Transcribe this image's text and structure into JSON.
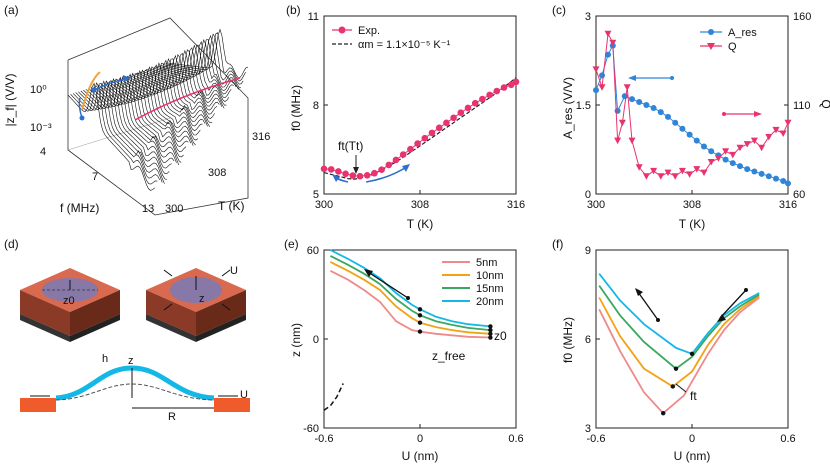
{
  "panel_labels": {
    "a": "(a)",
    "b": "(b)",
    "c": "(c)",
    "d": "(d)",
    "e": "(e)",
    "f": "(f)"
  },
  "colors": {
    "pink": "#e8336e",
    "blue": "#2f86d9",
    "orange": "#ef5b2a",
    "cyan": "#14b8e6",
    "mauve": "#8878a8"
  },
  "panel_a": {
    "ylabel": "|z_f| (V/V)",
    "yticks": [
      "10⁰",
      "10⁻³"
    ],
    "xlabel": "f (MHz)",
    "xticks": [
      "4",
      "7",
      "13"
    ],
    "tlabel": "T (K)",
    "tticks": [
      "300",
      "308",
      "316"
    ]
  },
  "chart_data": [
    {
      "id": "b",
      "type": "line",
      "title": "",
      "xlabel": "T (K)",
      "ylabel": "f0 (MHz)",
      "xlim": [
        300,
        316
      ],
      "ylim": [
        5,
        11
      ],
      "xticks": [
        300,
        308,
        316
      ],
      "yticks": [
        5,
        8,
        11
      ],
      "legend": [
        "Exp.",
        "αm = 1.1×10⁻⁵ K⁻¹"
      ],
      "annotation": "ft(Tt)",
      "series": [
        {
          "name": "Exp.",
          "x": [
            300,
            300.6,
            301.2,
            301.8,
            302.4,
            303,
            303.6,
            304.2,
            304.8,
            305.4,
            306,
            306.6,
            307.2,
            307.8,
            308.4,
            309,
            309.6,
            310.2,
            310.8,
            311.4,
            312,
            312.6,
            313.2,
            313.8,
            314.4,
            315,
            315.6,
            316
          ],
          "y": [
            5.85,
            5.83,
            5.76,
            5.68,
            5.62,
            5.6,
            5.63,
            5.7,
            5.82,
            5.98,
            6.15,
            6.33,
            6.51,
            6.7,
            6.88,
            7.06,
            7.23,
            7.4,
            7.57,
            7.74,
            7.9,
            8.06,
            8.2,
            8.34,
            8.47,
            8.59,
            8.68,
            8.78
          ]
        },
        {
          "name": "fit",
          "x": [
            300,
            302,
            302.5,
            303,
            304,
            305,
            306,
            307,
            308,
            309,
            310,
            311,
            312,
            313,
            314,
            315,
            316
          ],
          "y": [
            5.72,
            5.52,
            5.5,
            5.53,
            5.65,
            5.85,
            6.08,
            6.35,
            6.62,
            6.9,
            7.18,
            7.46,
            7.74,
            8.02,
            8.3,
            8.6,
            8.92
          ]
        }
      ]
    },
    {
      "id": "c",
      "type": "line",
      "xlabel": "T (K)",
      "ylabel": "A_res (V/V)",
      "y2label": "Q",
      "xlim": [
        300,
        316
      ],
      "ylim": [
        0,
        3
      ],
      "y2lim": [
        60,
        160
      ],
      "xticks": [
        300,
        308,
        316
      ],
      "yticks": [
        0,
        1.5,
        3
      ],
      "y2ticks": [
        60,
        110,
        160
      ],
      "legend": [
        "A_res",
        "Q"
      ],
      "series": [
        {
          "name": "A_res",
          "axis": "left",
          "x": [
            300,
            300.5,
            301,
            301.4,
            301.8,
            302.4,
            303,
            303.6,
            304.2,
            304.8,
            305.4,
            306,
            306.6,
            307.2,
            307.8,
            308.4,
            309,
            309.6,
            310.2,
            310.8,
            311.4,
            312,
            312.6,
            313.2,
            313.8,
            314.4,
            315,
            315.6,
            316
          ],
          "y": [
            1.75,
            2.0,
            2.35,
            2.5,
            1.4,
            1.65,
            1.6,
            1.55,
            1.5,
            1.45,
            1.38,
            1.3,
            1.2,
            1.1,
            1.0,
            0.9,
            0.8,
            0.72,
            0.65,
            0.58,
            0.52,
            0.47,
            0.42,
            0.38,
            0.34,
            0.3,
            0.26,
            0.22,
            0.18
          ]
        },
        {
          "name": "Q",
          "axis": "right",
          "x": [
            300,
            300.5,
            301,
            301.4,
            301.8,
            302.2,
            302.6,
            303,
            303.6,
            304.2,
            304.8,
            305.4,
            306,
            306.6,
            307.2,
            307.8,
            308.4,
            309,
            309.6,
            310.2,
            310.8,
            311.4,
            312,
            312.6,
            313.2,
            313.8,
            314.4,
            315,
            315.6,
            316
          ],
          "y": [
            130,
            120,
            150,
            145,
            90,
            100,
            120,
            90,
            75,
            70,
            73,
            70,
            72,
            70,
            73,
            71,
            74,
            72,
            78,
            80,
            84,
            82,
            86,
            88,
            90,
            86,
            92,
            96,
            94,
            100
          ]
        }
      ]
    },
    {
      "id": "e",
      "type": "line",
      "xlabel": "U (nm)",
      "ylabel": "z (nm)",
      "xlim": [
        -0.6,
        0.6
      ],
      "ylim": [
        -60,
        60
      ],
      "xticks": [
        -0.6,
        0,
        0.6
      ],
      "yticks": [
        -60,
        0,
        60
      ],
      "legend": [
        "5nm",
        "10nm",
        "15nm",
        "20nm"
      ],
      "annotations": [
        "z0",
        "z_free"
      ],
      "series": [
        {
          "name": "5nm",
          "x": [
            -0.56,
            -0.45,
            -0.35,
            -0.25,
            -0.15,
            -0.05,
            0,
            0.1,
            0.2,
            0.3,
            0.44
          ],
          "y": [
            46,
            40,
            33,
            25,
            12,
            6,
            5,
            3.5,
            2.5,
            1.5,
            1
          ]
        },
        {
          "name": "10nm",
          "x": [
            -0.56,
            -0.45,
            -0.35,
            -0.25,
            -0.15,
            -0.05,
            0,
            0.1,
            0.2,
            0.3,
            0.44
          ],
          "y": [
            52,
            46,
            40,
            33,
            22,
            14,
            11,
            8,
            6,
            4.5,
            3.5
          ]
        },
        {
          "name": "15nm",
          "x": [
            -0.56,
            -0.45,
            -0.35,
            -0.25,
            -0.15,
            -0.05,
            0,
            0.1,
            0.2,
            0.3,
            0.44
          ],
          "y": [
            56,
            50,
            44,
            37,
            27,
            19,
            16,
            12,
            9.5,
            7.5,
            6
          ]
        },
        {
          "name": "20nm",
          "x": [
            -0.56,
            -0.45,
            -0.35,
            -0.25,
            -0.15,
            -0.05,
            0,
            0.1,
            0.2,
            0.3,
            0.44
          ],
          "y": [
            60,
            54,
            48,
            41,
            31,
            23,
            20,
            15,
            12,
            10,
            8.5
          ]
        },
        {
          "name": "z_free",
          "x": [
            -0.6,
            -0.56,
            -0.52,
            -0.48
          ],
          "y": [
            -48,
            -45,
            -39,
            -30
          ]
        }
      ]
    },
    {
      "id": "f",
      "type": "line",
      "xlabel": "U (nm)",
      "ylabel": "f0 (MHz)",
      "xlim": [
        -0.6,
        0.6
      ],
      "ylim": [
        3,
        9
      ],
      "xticks": [
        -0.6,
        0,
        0.6
      ],
      "yticks": [
        3,
        6,
        9
      ],
      "annotation": "ft",
      "series": [
        {
          "name": "5nm",
          "x": [
            -0.58,
            -0.45,
            -0.3,
            -0.18,
            -0.05,
            0.1,
            0.2,
            0.3,
            0.42
          ],
          "y": [
            7.0,
            5.6,
            4.2,
            3.5,
            4.1,
            5.5,
            6.3,
            6.9,
            7.4
          ]
        },
        {
          "name": "10nm",
          "x": [
            -0.58,
            -0.45,
            -0.3,
            -0.12,
            0,
            0.1,
            0.2,
            0.3,
            0.42
          ],
          "y": [
            7.4,
            6.1,
            5.0,
            4.4,
            4.9,
            5.8,
            6.5,
            7.0,
            7.45
          ]
        },
        {
          "name": "15nm",
          "x": [
            -0.58,
            -0.45,
            -0.3,
            -0.1,
            0,
            0.1,
            0.2,
            0.3,
            0.42
          ],
          "y": [
            7.8,
            6.8,
            5.9,
            5.0,
            5.4,
            6.1,
            6.7,
            7.1,
            7.5
          ]
        },
        {
          "name": "20nm",
          "x": [
            -0.58,
            -0.45,
            -0.3,
            -0.1,
            0,
            0.1,
            0.2,
            0.3,
            0.42
          ],
          "y": [
            8.2,
            7.3,
            6.5,
            5.7,
            5.5,
            6.2,
            6.8,
            7.2,
            7.55
          ]
        }
      ]
    }
  ],
  "panel_d": {
    "labels": [
      "z0",
      "z",
      "U",
      "h",
      "z",
      "U",
      "R"
    ]
  }
}
